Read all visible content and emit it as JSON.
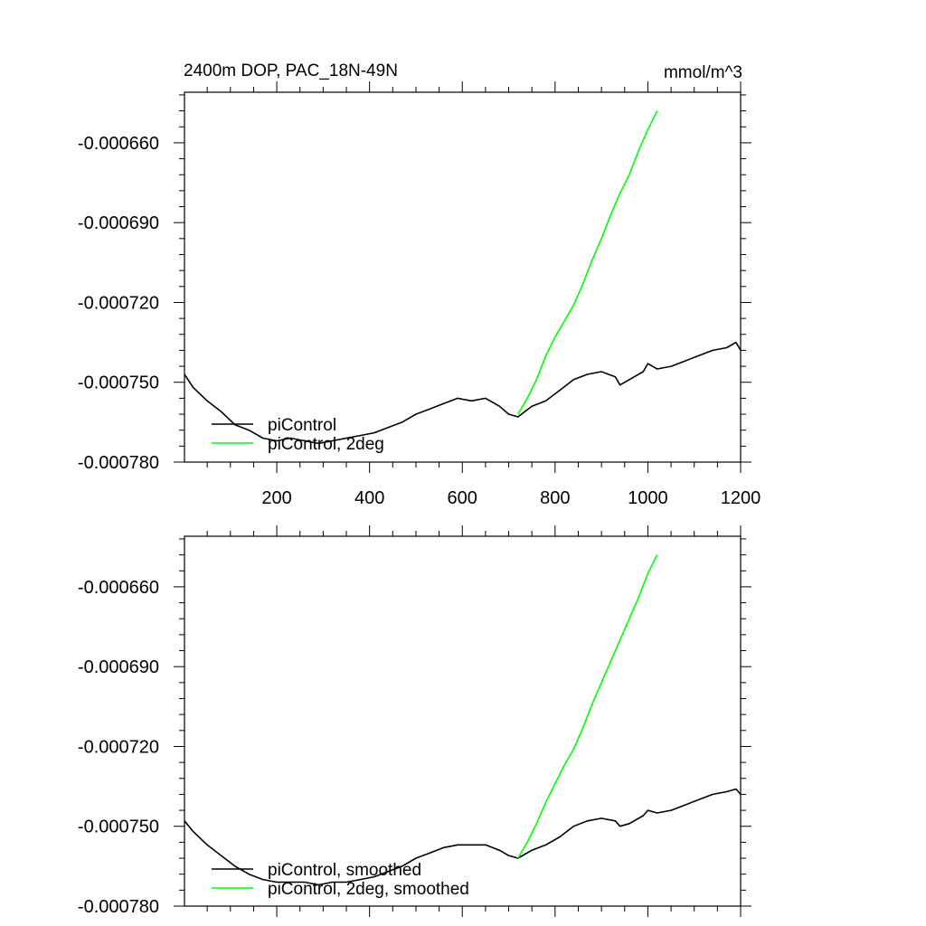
{
  "colors": {
    "piControl": "#000000",
    "piControl_2deg": "#00ff00",
    "background": "#ffffff"
  },
  "chart_data": [
    {
      "type": "line",
      "title": "2400m DOP, PAC_18N-49N",
      "units": "mmol/m^3",
      "xlim": [
        1,
        1200
      ],
      "ylim": [
        -0.00078,
        -0.000641
      ],
      "x_ticks": [
        200,
        400,
        600,
        800,
        1000,
        1200
      ],
      "y_ticks": [
        -0.00066,
        -0.00069,
        -0.00072,
        -0.00075,
        -0.00078
      ],
      "y_tick_labels": [
        "-0.000660",
        "-0.000690",
        "-0.000720",
        "-0.000750",
        "-0.000780"
      ],
      "x_tick_labels_shown": true,
      "legend_position": "lower-left",
      "series": [
        {
          "name": "piControl",
          "color": "#000000",
          "x": [
            1,
            20,
            50,
            80,
            110,
            140,
            170,
            200,
            230,
            260,
            290,
            320,
            350,
            380,
            410,
            440,
            470,
            500,
            530,
            560,
            590,
            620,
            650,
            680,
            700,
            720,
            750,
            780,
            810,
            840,
            870,
            900,
            930,
            940,
            960,
            990,
            1000,
            1020,
            1050,
            1080,
            1110,
            1140,
            1170,
            1190,
            1200
          ],
          "y": [
            -0.000747,
            -0.000752,
            -0.000757,
            -0.000761,
            -0.000766,
            -0.000768,
            -0.000771,
            -0.000772,
            -0.000771,
            -0.000772,
            -0.000773,
            -0.000772,
            -0.000771,
            -0.00077,
            -0.000769,
            -0.000767,
            -0.000765,
            -0.000762,
            -0.00076,
            -0.000758,
            -0.000756,
            -0.000757,
            -0.000756,
            -0.000759,
            -0.000762,
            -0.000763,
            -0.000759,
            -0.000757,
            -0.000753,
            -0.000749,
            -0.000747,
            -0.000746,
            -0.000748,
            -0.000751,
            -0.000749,
            -0.000746,
            -0.000743,
            -0.000745,
            -0.000744,
            -0.000742,
            -0.00074,
            -0.000738,
            -0.000737,
            -0.000735,
            -0.000738
          ]
        },
        {
          "name": "piControl, 2deg",
          "color": "#00ff00",
          "x": [
            720,
            740,
            760,
            780,
            800,
            820,
            840,
            860,
            880,
            900,
            920,
            940,
            960,
            980,
            1000,
            1020
          ],
          "y": [
            -0.000762,
            -0.000756,
            -0.000749,
            -0.00074,
            -0.000733,
            -0.000727,
            -0.000721,
            -0.000713,
            -0.000704,
            -0.000696,
            -0.000687,
            -0.000679,
            -0.000672,
            -0.000663,
            -0.000655,
            -0.000648
          ]
        }
      ]
    },
    {
      "type": "line",
      "title": "",
      "xlim": [
        1,
        1200
      ],
      "ylim": [
        -0.00078,
        -0.000641
      ],
      "x_ticks": [
        200,
        400,
        600,
        800,
        1000,
        1200
      ],
      "y_ticks": [
        -0.00066,
        -0.00069,
        -0.00072,
        -0.00075,
        -0.00078
      ],
      "y_tick_labels": [
        "-0.000660",
        "-0.000690",
        "-0.000720",
        "-0.000750",
        "-0.000780"
      ],
      "x_tick_labels_shown": false,
      "legend_position": "lower-left",
      "series": [
        {
          "name": "piControl, smoothed",
          "color": "#000000",
          "x": [
            1,
            20,
            50,
            80,
            110,
            140,
            170,
            200,
            230,
            260,
            290,
            320,
            350,
            380,
            410,
            440,
            470,
            500,
            530,
            560,
            590,
            620,
            650,
            680,
            700,
            720,
            750,
            780,
            810,
            840,
            870,
            900,
            930,
            940,
            960,
            990,
            1000,
            1020,
            1050,
            1080,
            1110,
            1140,
            1170,
            1190,
            1200
          ],
          "y": [
            -0.000748,
            -0.000752,
            -0.000757,
            -0.000761,
            -0.000765,
            -0.000768,
            -0.00077,
            -0.000771,
            -0.000771,
            -0.000771,
            -0.000772,
            -0.000771,
            -0.000771,
            -0.00077,
            -0.000769,
            -0.000767,
            -0.000765,
            -0.000762,
            -0.00076,
            -0.000758,
            -0.000757,
            -0.000757,
            -0.000757,
            -0.000759,
            -0.000761,
            -0.000762,
            -0.000759,
            -0.000757,
            -0.000754,
            -0.00075,
            -0.000748,
            -0.000747,
            -0.000748,
            -0.00075,
            -0.000749,
            -0.000746,
            -0.000744,
            -0.000745,
            -0.000744,
            -0.000742,
            -0.00074,
            -0.000738,
            -0.000737,
            -0.000736,
            -0.000738
          ]
        },
        {
          "name": "piControl, 2deg, smoothed",
          "color": "#00ff00",
          "x": [
            720,
            740,
            760,
            780,
            800,
            820,
            840,
            860,
            880,
            900,
            920,
            940,
            960,
            980,
            1000,
            1020
          ],
          "y": [
            -0.000762,
            -0.000756,
            -0.000749,
            -0.000741,
            -0.000734,
            -0.000727,
            -0.000721,
            -0.000713,
            -0.000704,
            -0.000696,
            -0.000688,
            -0.00068,
            -0.000672,
            -0.000664,
            -0.000655,
            -0.000648
          ]
        }
      ]
    }
  ]
}
